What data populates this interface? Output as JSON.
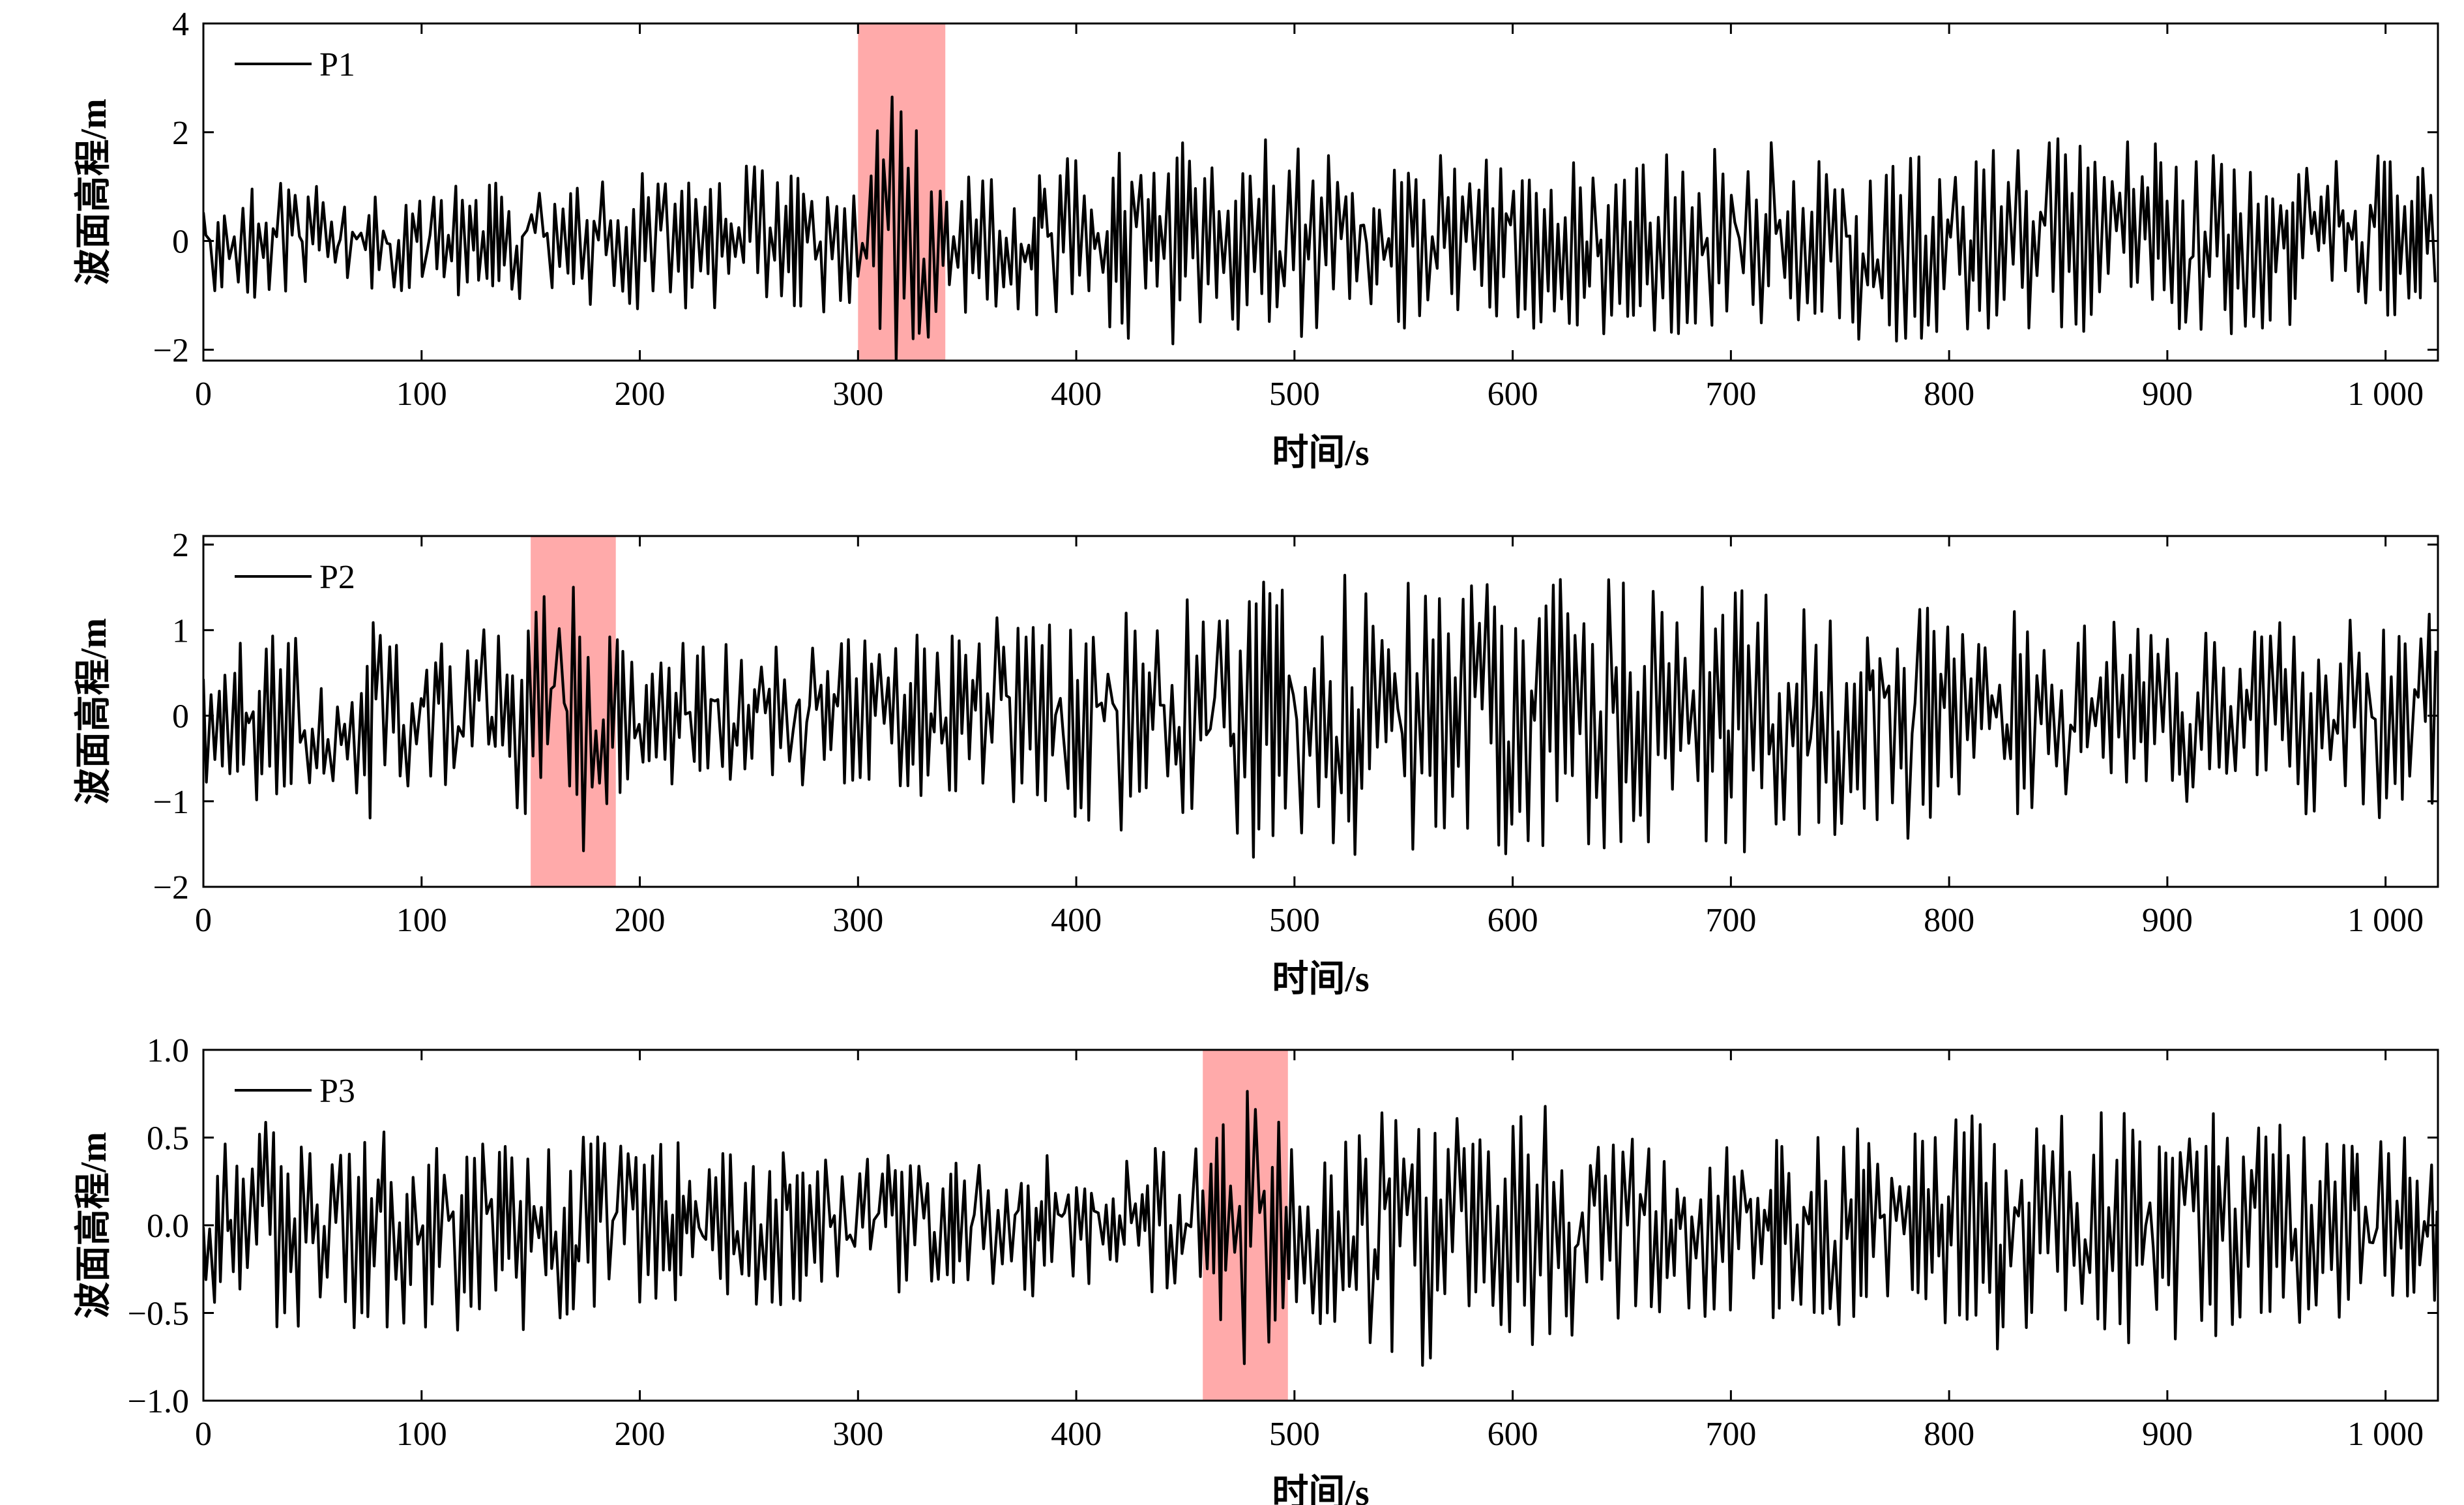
{
  "chart_data": [
    {
      "type": "line",
      "xlabel": "时间/s",
      "ylabel": "波面高程/m",
      "xlim": [
        0,
        1024
      ],
      "ylim": [
        -2.2,
        4
      ],
      "xticks": [
        0,
        100,
        200,
        300,
        400,
        500,
        600,
        700,
        800,
        900,
        1000
      ],
      "xtick_labels": [
        "0",
        "100",
        "200",
        "300",
        "400",
        "500",
        "600",
        "700",
        "800",
        "900",
        "1 000"
      ],
      "yticks": [
        -2,
        0,
        2,
        4
      ],
      "ytick_labels": [
        "−2",
        "0",
        "2",
        "4"
      ],
      "legend": {
        "placement": "top-left"
      },
      "highlight": {
        "x_range": [
          300,
          340
        ],
        "color": "#ffaaaa"
      },
      "series": [
        {
          "name": "P1",
          "color": "#000000",
          "amplitude_envelope": [
            {
              "x": 0,
              "a": 1.1
            },
            {
              "x": 100,
              "a": 1.0
            },
            {
              "x": 280,
              "a": 1.5
            },
            {
              "x": 300,
              "a": 1.4
            },
            {
              "x": 318,
              "a": 3.0
            },
            {
              "x": 340,
              "a": 1.3
            },
            {
              "x": 400,
              "a": 1.6
            },
            {
              "x": 450,
              "a": 2.0
            },
            {
              "x": 560,
              "a": 1.6
            },
            {
              "x": 700,
              "a": 1.8
            },
            {
              "x": 860,
              "a": 1.9
            },
            {
              "x": 1024,
              "a": 1.5
            }
          ]
        }
      ]
    },
    {
      "type": "line",
      "xlabel": "时间/s",
      "ylabel": "波面高程/m",
      "xlim": [
        0,
        1024
      ],
      "ylim": [
        -2,
        2.1
      ],
      "xticks": [
        0,
        100,
        200,
        300,
        400,
        500,
        600,
        700,
        800,
        900,
        1000
      ],
      "xtick_labels": [
        "0",
        "100",
        "200",
        "300",
        "400",
        "500",
        "600",
        "700",
        "800",
        "900",
        "1 000"
      ],
      "yticks": [
        -2,
        -1,
        0,
        1,
        2
      ],
      "ytick_labels": [
        "−2",
        "−1",
        "0",
        "1",
        "2"
      ],
      "legend": {
        "placement": "top-left"
      },
      "highlight": {
        "x_range": [
          150,
          189
        ],
        "color": "#ffaaaa"
      },
      "series": [
        {
          "name": "P2",
          "color": "#000000",
          "amplitude_envelope": [
            {
              "x": 0,
              "a": 0.8
            },
            {
              "x": 58,
              "a": 1.4
            },
            {
              "x": 120,
              "a": 1.0
            },
            {
              "x": 150,
              "a": 1.2
            },
            {
              "x": 168,
              "a": 2.1
            },
            {
              "x": 189,
              "a": 0.9
            },
            {
              "x": 300,
              "a": 0.9
            },
            {
              "x": 480,
              "a": 1.7
            },
            {
              "x": 620,
              "a": 1.6
            },
            {
              "x": 745,
              "a": 1.6
            },
            {
              "x": 900,
              "a": 1.0
            },
            {
              "x": 1024,
              "a": 1.3
            }
          ]
        }
      ]
    },
    {
      "type": "line",
      "xlabel": "时间/s",
      "ylabel": "波面高程/m",
      "xlim": [
        0,
        1024
      ],
      "ylim": [
        -1.0,
        1.0
      ],
      "xticks": [
        0,
        100,
        200,
        300,
        400,
        500,
        600,
        700,
        800,
        900,
        1000
      ],
      "xtick_labels": [
        "0",
        "100",
        "200",
        "300",
        "400",
        "500",
        "600",
        "700",
        "800",
        "900",
        "1 000"
      ],
      "yticks": [
        -1.0,
        -0.5,
        0.0,
        0.5,
        1.0
      ],
      "ytick_labels": [
        "−1.0",
        "−0.5",
        "0.0",
        "0.5",
        "1.0"
      ],
      "legend": {
        "placement": "top-left"
      },
      "highlight": {
        "x_range": [
          458,
          497
        ],
        "color": "#ffaaaa"
      },
      "series": [
        {
          "name": "P3",
          "color": "#000000",
          "amplitude_envelope": [
            {
              "x": 0,
              "a": 0.4
            },
            {
              "x": 10,
              "a": 0.6
            },
            {
              "x": 180,
              "a": 0.6
            },
            {
              "x": 300,
              "a": 0.4
            },
            {
              "x": 420,
              "a": 0.45
            },
            {
              "x": 458,
              "a": 0.5
            },
            {
              "x": 478,
              "a": 0.9
            },
            {
              "x": 497,
              "a": 0.5
            },
            {
              "x": 545,
              "a": 0.85
            },
            {
              "x": 700,
              "a": 0.5
            },
            {
              "x": 842,
              "a": 0.75
            },
            {
              "x": 1024,
              "a": 0.5
            }
          ]
        }
      ]
    }
  ]
}
